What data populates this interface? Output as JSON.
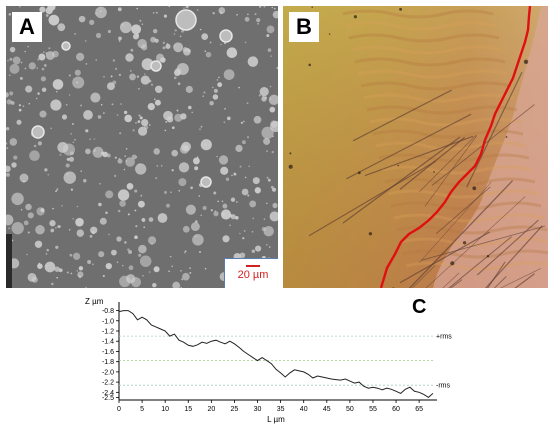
{
  "panels": {
    "a": {
      "label": "A"
    },
    "b": {
      "label": "B"
    },
    "c": {
      "label": "C"
    }
  },
  "scale_bar": {
    "text": "20 µm",
    "color": "#d32020"
  },
  "colors": {
    "boundary": "#e01010",
    "profile": "#222222",
    "grid": "#a6ccc4",
    "mean": "#9ecb8a"
  },
  "chart_data": {
    "type": "line",
    "ylabel": "Z µm",
    "xlabel": "L µm",
    "xlim": [
      0,
      68
    ],
    "ylim": [
      -2.55,
      -0.75
    ],
    "x_ticks": [
      0,
      5,
      10,
      15,
      20,
      25,
      30,
      35,
      40,
      45,
      50,
      55,
      60,
      65
    ],
    "y_ticks": [
      -0.8,
      -1.0,
      -1.2,
      -1.4,
      -1.6,
      -1.8,
      -2.0,
      -2.2,
      -2.4,
      -2.5
    ],
    "reference_lines": [
      {
        "label": "+rms",
        "y": -1.3
      },
      {
        "label": "",
        "y": -1.78
      },
      {
        "label": "-rms",
        "y": -2.26
      }
    ],
    "series": [
      {
        "x": [
          0,
          1,
          2,
          3,
          4,
          5,
          6,
          7,
          8,
          9,
          10,
          11,
          12,
          13,
          14,
          15,
          16,
          17,
          18,
          19,
          20,
          21,
          22,
          23,
          24,
          25,
          26,
          27,
          28,
          29,
          30,
          31,
          32,
          33,
          34,
          35,
          36,
          37,
          38,
          39,
          40,
          41,
          42,
          43,
          44,
          45,
          46,
          47,
          48,
          49,
          50,
          51,
          52,
          53,
          54,
          55,
          56,
          57,
          58,
          59,
          60,
          61,
          62,
          63,
          64,
          65,
          66,
          67,
          68
        ],
        "values": [
          -0.82,
          -0.8,
          -0.8,
          -0.86,
          -0.98,
          -0.93,
          -0.98,
          -1.08,
          -1.12,
          -1.16,
          -1.2,
          -1.3,
          -1.26,
          -1.38,
          -1.42,
          -1.48,
          -1.5,
          -1.47,
          -1.42,
          -1.44,
          -1.4,
          -1.38,
          -1.42,
          -1.45,
          -1.4,
          -1.45,
          -1.52,
          -1.6,
          -1.66,
          -1.72,
          -1.78,
          -1.72,
          -1.78,
          -1.84,
          -1.95,
          -2.02,
          -2.1,
          -2.02,
          -1.96,
          -1.98,
          -2.0,
          -2.05,
          -2.12,
          -2.08,
          -2.1,
          -2.12,
          -2.14,
          -2.15,
          -2.16,
          -2.14,
          -2.18,
          -2.22,
          -2.2,
          -2.28,
          -2.32,
          -2.3,
          -2.32,
          -2.35,
          -2.32,
          -2.34,
          -2.38,
          -2.42,
          -2.34,
          -2.3,
          -2.38,
          -2.4,
          -2.44,
          -2.5,
          -2.42
        ]
      }
    ]
  }
}
